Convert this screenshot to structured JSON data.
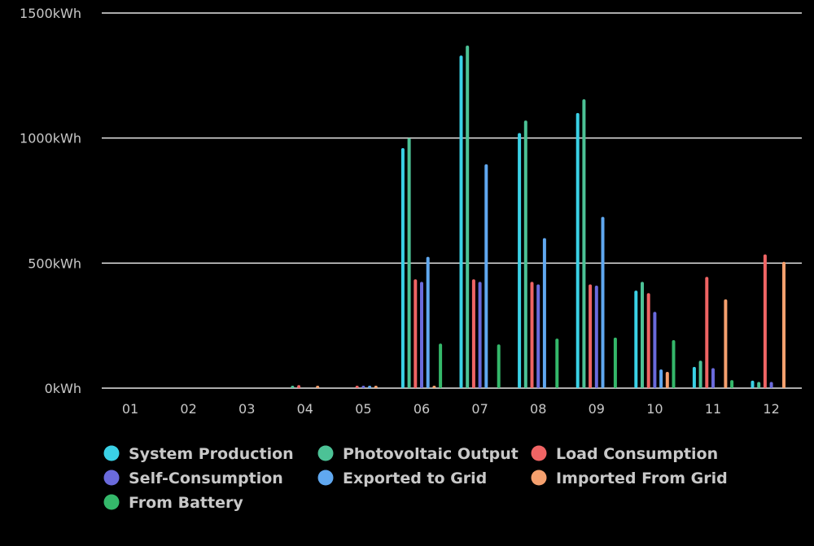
{
  "chart_data": {
    "type": "bar",
    "unit": "kWh",
    "categories": [
      "01",
      "02",
      "03",
      "04",
      "05",
      "06",
      "07",
      "08",
      "09",
      "10",
      "11",
      "12"
    ],
    "ylim": [
      0,
      1500
    ],
    "y_ticks": [
      {
        "value": 0,
        "label": "0kWh"
      },
      {
        "value": 500,
        "label": "500kWh"
      },
      {
        "value": 1000,
        "label": "1000kWh"
      },
      {
        "value": 1500,
        "label": "1500kWh"
      }
    ],
    "grid": true,
    "legend_position": "bottom-left",
    "series": [
      {
        "name": "System Production",
        "color": "#3ad1e6",
        "values": [
          0,
          0,
          0,
          0,
          0,
          960,
          1330,
          1020,
          1100,
          390,
          85,
          30
        ]
      },
      {
        "name": "Photovoltaic Output",
        "color": "#4cc296",
        "values": [
          0,
          0,
          0,
          8,
          0,
          1000,
          1370,
          1070,
          1155,
          425,
          110,
          25
        ]
      },
      {
        "name": "Load Consumption",
        "color": "#f06464",
        "values": [
          0,
          0,
          0,
          12,
          4,
          435,
          435,
          425,
          415,
          380,
          445,
          535
        ]
      },
      {
        "name": "Self-Consumption",
        "color": "#6a6adc",
        "values": [
          0,
          0,
          0,
          0,
          4,
          425,
          425,
          415,
          410,
          305,
          80,
          25
        ]
      },
      {
        "name": "Exported to Grid",
        "color": "#60a8f0",
        "values": [
          0,
          0,
          0,
          0,
          2,
          525,
          895,
          600,
          685,
          75,
          0,
          0
        ]
      },
      {
        "name": "Imported From Grid",
        "color": "#f5a06e",
        "values": [
          0,
          0,
          0,
          7,
          2,
          8,
          0,
          0,
          0,
          65,
          355,
          505
        ]
      },
      {
        "name": "From Battery",
        "color": "#34b86a",
        "values": [
          0,
          0,
          0,
          0,
          0,
          178,
          175,
          198,
          202,
          192,
          32,
          0
        ]
      }
    ]
  }
}
